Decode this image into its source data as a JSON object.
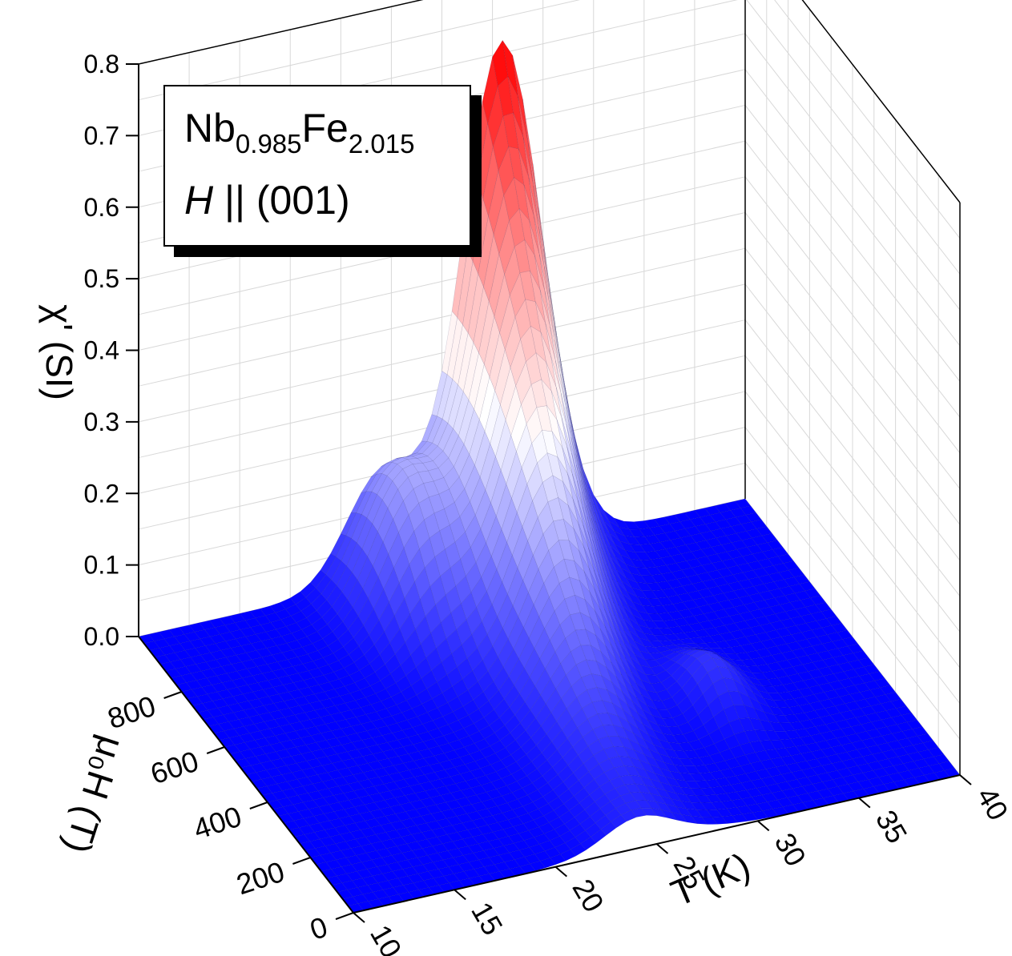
{
  "chart_data": {
    "type": "surface3d",
    "legend": {
      "compound_base_1": "Nb",
      "compound_sub_1": "0.985",
      "compound_base_2": "Fe",
      "compound_sub_2": "2.015",
      "field_symbol": "H",
      "field_direction": "|| (001)"
    },
    "z_axis": {
      "label": "χ' (SI)",
      "range": [
        0,
        0.8
      ],
      "ticks": [
        "0.0",
        "0.1",
        "0.2",
        "0.3",
        "0.4",
        "0.5",
        "0.6",
        "0.7",
        "0.8"
      ]
    },
    "t_axis": {
      "label": "T (K)",
      "range": [
        10,
        40
      ],
      "ticks": [
        "10",
        "15",
        "20",
        "25",
        "30",
        "35",
        "40"
      ]
    },
    "h_axis": {
      "label": "μ₀H (T)",
      "range": [
        0,
        1000
      ],
      "ticks": [
        "0",
        "200",
        "400",
        "600",
        "800"
      ]
    },
    "colormap": {
      "low": "#0000ff",
      "mid": "#ffffff",
      "high": "#ff0000"
    },
    "surface_features": [
      {
        "feature": "main peak",
        "T": 28,
        "H": 920,
        "chi": 0.71
      },
      {
        "feature": "ridge at low field",
        "T": 24,
        "H": 100,
        "chi": 0.03
      },
      {
        "feature": "side lobe",
        "T": 31,
        "H": 400,
        "chi": 0.06
      },
      {
        "feature": "shoulder",
        "T": 22,
        "H": 900,
        "chi": 0.18
      }
    ],
    "grid": true
  }
}
